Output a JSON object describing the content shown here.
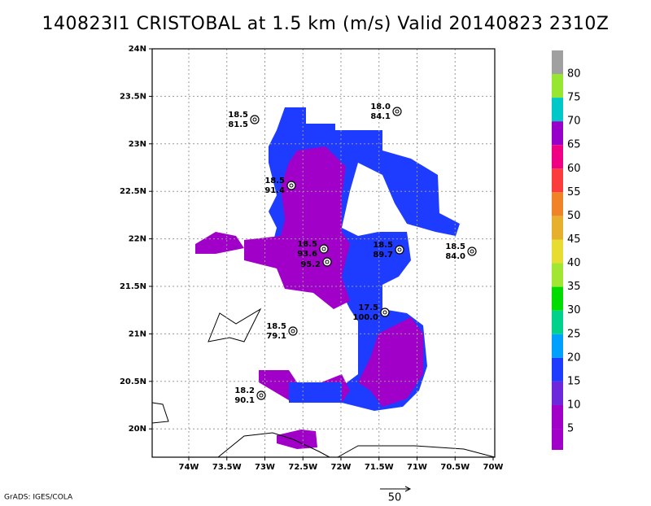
{
  "header": {
    "title": "140823I1 CRISTOBAL at 1.5 km (m/s) Valid 20140823 2310Z"
  },
  "map": {
    "lat_labels": [
      "24N",
      "23.5N",
      "23N",
      "22.5N",
      "22N",
      "21.5N",
      "21N",
      "20.5N",
      "20N"
    ],
    "lon_labels": [
      "74W",
      "73.5W",
      "73W",
      "72.5W",
      "72W",
      "71.5W",
      "71W",
      "70.5W",
      "70W"
    ],
    "stations": [
      {
        "lines": [
          "18.5",
          "81.5"
        ]
      },
      {
        "lines": [
          "18.0",
          "84.1"
        ]
      },
      {
        "lines": [
          "18.5",
          "91.4"
        ]
      },
      {
        "lines": [
          "18.5",
          "93.6"
        ]
      },
      {
        "lines": [
          "95.2"
        ]
      },
      {
        "lines": [
          "18.5",
          "89.7"
        ]
      },
      {
        "lines": [
          "18.5",
          "84.0"
        ]
      },
      {
        "lines": [
          "17.5",
          "100.0"
        ]
      },
      {
        "lines": [
          "18.5",
          "79.1"
        ]
      },
      {
        "lines": [
          "18.2",
          "90.1"
        ]
      }
    ]
  },
  "colorbar": {
    "labels": [
      "80",
      "75",
      "70",
      "65",
      "60",
      "55",
      "50",
      "45",
      "40",
      "35",
      "30",
      "25",
      "20",
      "15",
      "10",
      "5"
    ],
    "colors": [
      "#a0a0a0",
      "#96e632",
      "#00c8c8",
      "#9600c8",
      "#f00082",
      "#fa3c3c",
      "#f08228",
      "#e6af2d",
      "#e6dc32",
      "#a0e632",
      "#00dc00",
      "#00d28c",
      "#00a0ff",
      "#1e3cff",
      "#6e28dc",
      "#a000c8",
      "#a000c8"
    ]
  },
  "footer": {
    "credit": "GrADS: IGES/COLA",
    "scale_label": "50"
  }
}
